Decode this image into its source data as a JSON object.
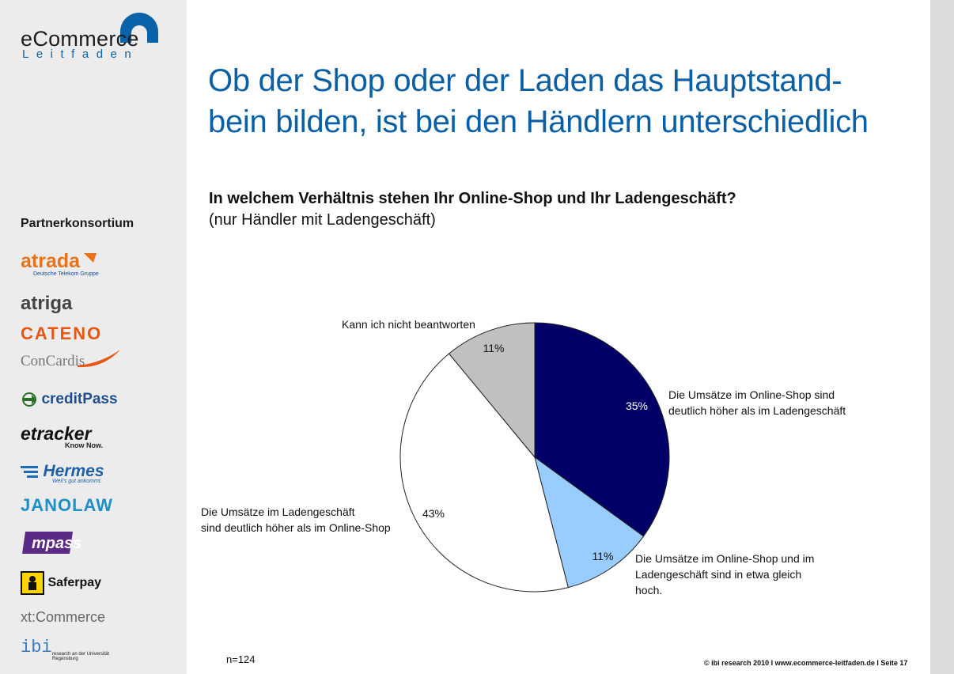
{
  "brand": {
    "logo_main": "eCommerce",
    "logo_sub": "Leitfaden",
    "color": "#0a62a8"
  },
  "title": "Ob der Shop oder der Laden das Hauptstand-bein bilden, ist bei den Händlern unterschiedlich",
  "title_line1": "Ob der Shop oder der Laden das Hauptstand-",
  "title_line2": "bein bilden, ist bei den Händlern unterschiedlich",
  "question": "In welchem Verhältnis stehen Ihr Online-Shop und Ihr Ladengeschäft?",
  "question_note": "(nur Händler mit Ladengeschäft)",
  "sidebar": {
    "heading": "Partnerkonsortium",
    "partners": [
      {
        "name": "atrada",
        "tagline": "Deutsche Telekom Gruppe"
      },
      {
        "name": "atriga"
      },
      {
        "name": "CATENO"
      },
      {
        "name": "ConCardis"
      },
      {
        "name": "creditPass"
      },
      {
        "name": "etracker",
        "tagline": "Know Now."
      },
      {
        "name": "Hermes",
        "tagline": "Weil's gut ankommt."
      },
      {
        "name": "JANOLAW"
      },
      {
        "name": "mpass"
      },
      {
        "name": "Saferpay"
      },
      {
        "name": "xt:Commerce"
      },
      {
        "name": "ibi",
        "tagline": "research an der Universität Regensburg"
      }
    ]
  },
  "chart_data": {
    "type": "pie",
    "title": "In welchem Verhältnis stehen Ihr Online-Shop und Ihr Ladengeschäft?",
    "slices": [
      {
        "label": "Die Umsätze im Online-Shop sind deutlich höher als im Ladengeschäft",
        "label_lines": [
          "Die Umsätze im Online-Shop sind",
          "deutlich höher als im Ladengeschäft"
        ],
        "value": 35,
        "display": "35%",
        "color": "#000066",
        "text_color": "#ffffff"
      },
      {
        "label": "Die Umsätze im Online-Shop und im Ladengeschäft sind in etwa gleich hoch.",
        "label_lines": [
          "Die Umsätze im Online-Shop und im",
          "Ladengeschäft sind in etwa gleich",
          "hoch."
        ],
        "value": 11,
        "display": "11%",
        "color": "#99ccff",
        "text_color": "#111111"
      },
      {
        "label": "Die Umsätze im Ladengeschäft sind deutlich höher als im Online-Shop",
        "label_lines": [
          "Die Umsätze im Ladengeschäft",
          "sind deutlich höher als im Online-Shop"
        ],
        "value": 43,
        "display": "43%",
        "color": "#ffffff",
        "text_color": "#111111"
      },
      {
        "label": "Kann ich nicht beantworten",
        "label_lines": [
          "Kann ich nicht beantworten"
        ],
        "value": 11,
        "display": "11%",
        "color": "#c0c0c0",
        "text_color": "#111111"
      }
    ]
  },
  "sample": "n=124",
  "footer": "© ibi research 2010 I www.ecommerce-leitfaden.de I Seite 17"
}
